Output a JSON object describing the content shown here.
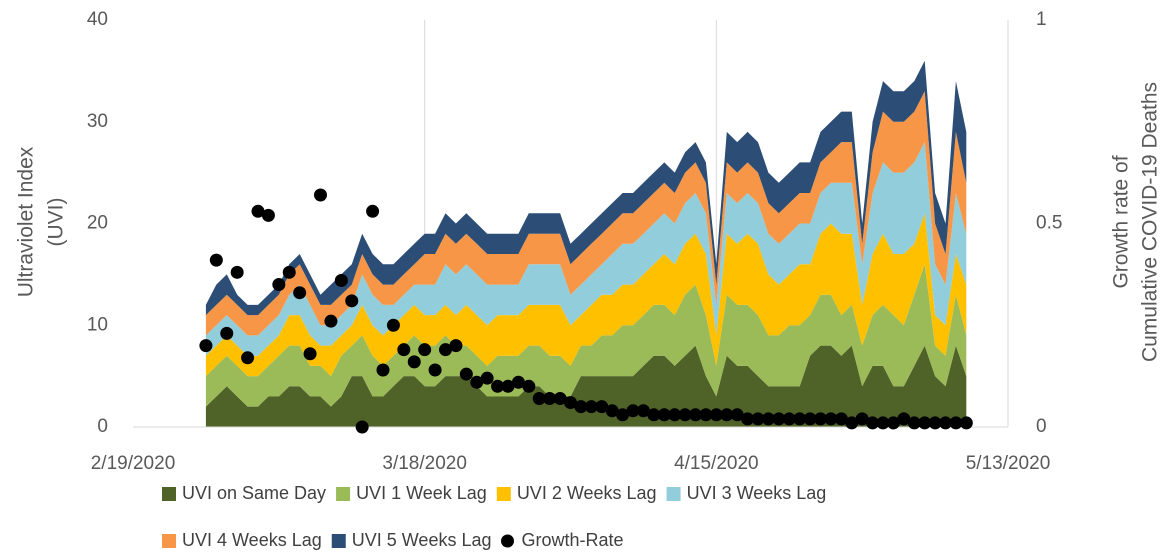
{
  "chart_data": {
    "type": "stacked_area",
    "ylabel": [
      "Ultraviolet Index",
      "(UVI)"
    ],
    "y2label": [
      "Growth rate of",
      "Cumulative COVID-19 Deaths"
    ],
    "x": [
      "2/26/2020",
      "2/27/2020",
      "2/28/2020",
      "2/29/2020",
      "3/1/2020",
      "3/2/2020",
      "3/3/2020",
      "3/4/2020",
      "3/5/2020",
      "3/6/2020",
      "3/7/2020",
      "3/8/2020",
      "3/9/2020",
      "3/10/2020",
      "3/11/2020",
      "3/12/2020",
      "3/13/2020",
      "3/14/2020",
      "3/15/2020",
      "3/16/2020",
      "3/17/2020",
      "3/18/2020",
      "3/19/2020",
      "3/20/2020",
      "3/21/2020",
      "3/22/2020",
      "3/23/2020",
      "3/24/2020",
      "3/25/2020",
      "3/26/2020",
      "3/27/2020",
      "3/28/2020",
      "3/29/2020",
      "3/30/2020",
      "3/31/2020",
      "4/1/2020",
      "4/2/2020",
      "4/3/2020",
      "4/4/2020",
      "4/5/2020",
      "4/6/2020",
      "4/7/2020",
      "4/8/2020",
      "4/9/2020",
      "4/10/2020",
      "4/11/2020",
      "4/12/2020",
      "4/13/2020",
      "4/14/2020",
      "4/15/2020",
      "4/16/2020",
      "4/17/2020",
      "4/18/2020",
      "4/19/2020",
      "4/20/2020",
      "4/21/2020",
      "4/22/2020",
      "4/23/2020",
      "4/24/2020",
      "4/25/2020",
      "4/26/2020",
      "4/27/2020",
      "4/28/2020",
      "4/29/2020",
      "4/30/2020",
      "5/1/2020",
      "5/2/2020",
      "5/3/2020",
      "5/4/2020",
      "5/5/2020",
      "5/6/2020",
      "5/7/2020",
      "5/8/2020",
      "5/9/2020"
    ],
    "xlim": [
      "2/19/2020",
      "5/13/2020"
    ],
    "xticks": [
      "2/19/2020",
      "3/18/2020",
      "4/15/2020",
      "5/13/2020"
    ],
    "ylim": [
      0,
      40
    ],
    "yticks": [
      0,
      10,
      20,
      30,
      40
    ],
    "y2lim": [
      0,
      1
    ],
    "y2ticks": [
      0,
      0.5,
      1
    ],
    "grid": "x",
    "series": [
      {
        "name": "UVI on Same Day",
        "color": "#4f6228",
        "values": [
          2,
          3,
          4,
          3,
          2,
          2,
          3,
          3,
          4,
          4,
          3,
          3,
          2,
          3,
          5,
          5,
          3,
          3,
          4,
          5,
          5,
          4,
          4,
          5,
          5,
          5,
          4,
          3,
          3,
          3,
          3,
          4,
          4,
          3,
          3,
          3,
          5,
          5,
          5,
          5,
          5,
          5,
          6,
          7,
          7,
          6,
          7,
          8,
          5,
          3,
          7,
          6,
          6,
          5,
          4,
          4,
          4,
          4,
          7,
          8,
          8,
          7,
          8,
          4,
          6,
          6,
          4,
          4,
          6,
          8,
          5,
          4,
          8,
          5
        ]
      },
      {
        "name": "UVI 1 Week Lag",
        "color": "#9bbb59",
        "values": [
          3,
          3,
          3,
          3,
          3,
          3,
          3,
          4,
          4,
          4,
          3,
          3,
          3,
          4,
          3,
          4,
          4,
          3,
          3,
          3,
          4,
          4,
          4,
          4,
          3,
          3,
          3,
          3,
          4,
          4,
          4,
          4,
          4,
          4,
          4,
          3,
          3,
          3,
          4,
          4,
          5,
          5,
          5,
          5,
          5,
          5,
          6,
          6,
          6,
          3,
          6,
          6,
          6,
          6,
          5,
          5,
          6,
          6,
          4,
          5,
          5,
          4,
          4,
          4,
          5,
          6,
          7,
          6,
          7,
          8,
          3,
          3,
          5,
          4
        ]
      },
      {
        "name": "UVI 2 Weeks Lag",
        "color": "#ffc000",
        "values": [
          2,
          2,
          2,
          2,
          2,
          2,
          2,
          2,
          3,
          3,
          3,
          2,
          3,
          2,
          2,
          3,
          3,
          3,
          3,
          3,
          3,
          3,
          3,
          3,
          3,
          4,
          4,
          4,
          4,
          4,
          4,
          4,
          4,
          5,
          5,
          4,
          3,
          4,
          4,
          4,
          4,
          4,
          4,
          4,
          5,
          5,
          5,
          5,
          6,
          3,
          6,
          6,
          7,
          7,
          6,
          5,
          5,
          6,
          5,
          6,
          7,
          8,
          7,
          4,
          6,
          7,
          6,
          7,
          5,
          5,
          3,
          3,
          4,
          5
        ]
      },
      {
        "name": "UVI 3 Weeks Lag",
        "color": "#92cddc",
        "values": [
          2,
          2,
          2,
          2,
          2,
          2,
          2,
          2,
          2,
          3,
          3,
          2,
          2,
          2,
          2,
          3,
          3,
          3,
          2,
          2,
          2,
          3,
          3,
          4,
          4,
          4,
          4,
          4,
          3,
          3,
          3,
          4,
          4,
          4,
          4,
          3,
          3,
          3,
          3,
          4,
          4,
          4,
          4,
          4,
          4,
          4,
          4,
          4,
          4,
          3,
          4,
          4,
          4,
          4,
          4,
          4,
          4,
          4,
          4,
          4,
          4,
          5,
          5,
          4,
          6,
          7,
          8,
          8,
          8,
          7,
          5,
          4,
          6,
          5
        ]
      },
      {
        "name": "UVI 4 Weeks Lag",
        "color": "#f79646",
        "values": [
          2,
          2,
          2,
          2,
          2,
          2,
          2,
          2,
          2,
          2,
          2,
          2,
          2,
          2,
          2,
          2,
          2,
          2,
          2,
          2,
          2,
          3,
          3,
          3,
          3,
          3,
          3,
          3,
          3,
          3,
          3,
          3,
          3,
          3,
          3,
          3,
          3,
          3,
          3,
          3,
          3,
          3,
          3,
          3,
          3,
          3,
          3,
          3,
          3,
          2,
          3,
          3,
          3,
          3,
          3,
          3,
          3,
          3,
          3,
          3,
          3,
          4,
          4,
          2,
          4,
          5,
          5,
          5,
          5,
          5,
          4,
          3,
          6,
          5
        ]
      },
      {
        "name": "UVI 5 Weeks Lag",
        "color": "#2c4d75",
        "values": [
          1,
          2,
          2,
          1,
          1,
          1,
          1,
          1,
          1,
          1,
          1,
          1,
          2,
          2,
          2,
          2,
          2,
          2,
          2,
          2,
          2,
          2,
          2,
          2,
          2,
          2,
          2,
          2,
          2,
          2,
          2,
          2,
          2,
          2,
          2,
          2,
          2,
          2,
          2,
          2,
          2,
          2,
          2,
          2,
          2,
          2,
          2,
          2,
          2,
          2,
          3,
          3,
          3,
          3,
          3,
          3,
          3,
          3,
          3,
          3,
          3,
          3,
          3,
          2,
          3,
          3,
          3,
          3,
          3,
          3,
          3,
          3,
          5,
          5
        ]
      },
      {
        "name": "Growth-Rate",
        "type": "scatter",
        "axis": "y2",
        "color": "#000000",
        "values": [
          0.2,
          0.41,
          0.23,
          0.38,
          0.17,
          0.53,
          0.52,
          0.35,
          0.38,
          0.33,
          0.18,
          0.57,
          0.26,
          0.36,
          0.31,
          0,
          0.53,
          0.14,
          0.25,
          0.19,
          0.16,
          0.19,
          0.14,
          0.19,
          0.2,
          0.13,
          0.11,
          0.12,
          0.1,
          0.1,
          0.11,
          0.1,
          0.07,
          0.07,
          0.07,
          0.06,
          0.05,
          0.05,
          0.05,
          0.04,
          0.03,
          0.04,
          0.04,
          0.03,
          0.03,
          0.03,
          0.03,
          0.03,
          0.03,
          0.03,
          0.03,
          0.03,
          0.02,
          0.02,
          0.02,
          0.02,
          0.02,
          0.02,
          0.02,
          0.02,
          0.02,
          0.02,
          0.01,
          0.02,
          0.01,
          0.01,
          0.01,
          0.02,
          0.01,
          0.01,
          0.01,
          0.01,
          0.01,
          0.01
        ]
      }
    ]
  }
}
